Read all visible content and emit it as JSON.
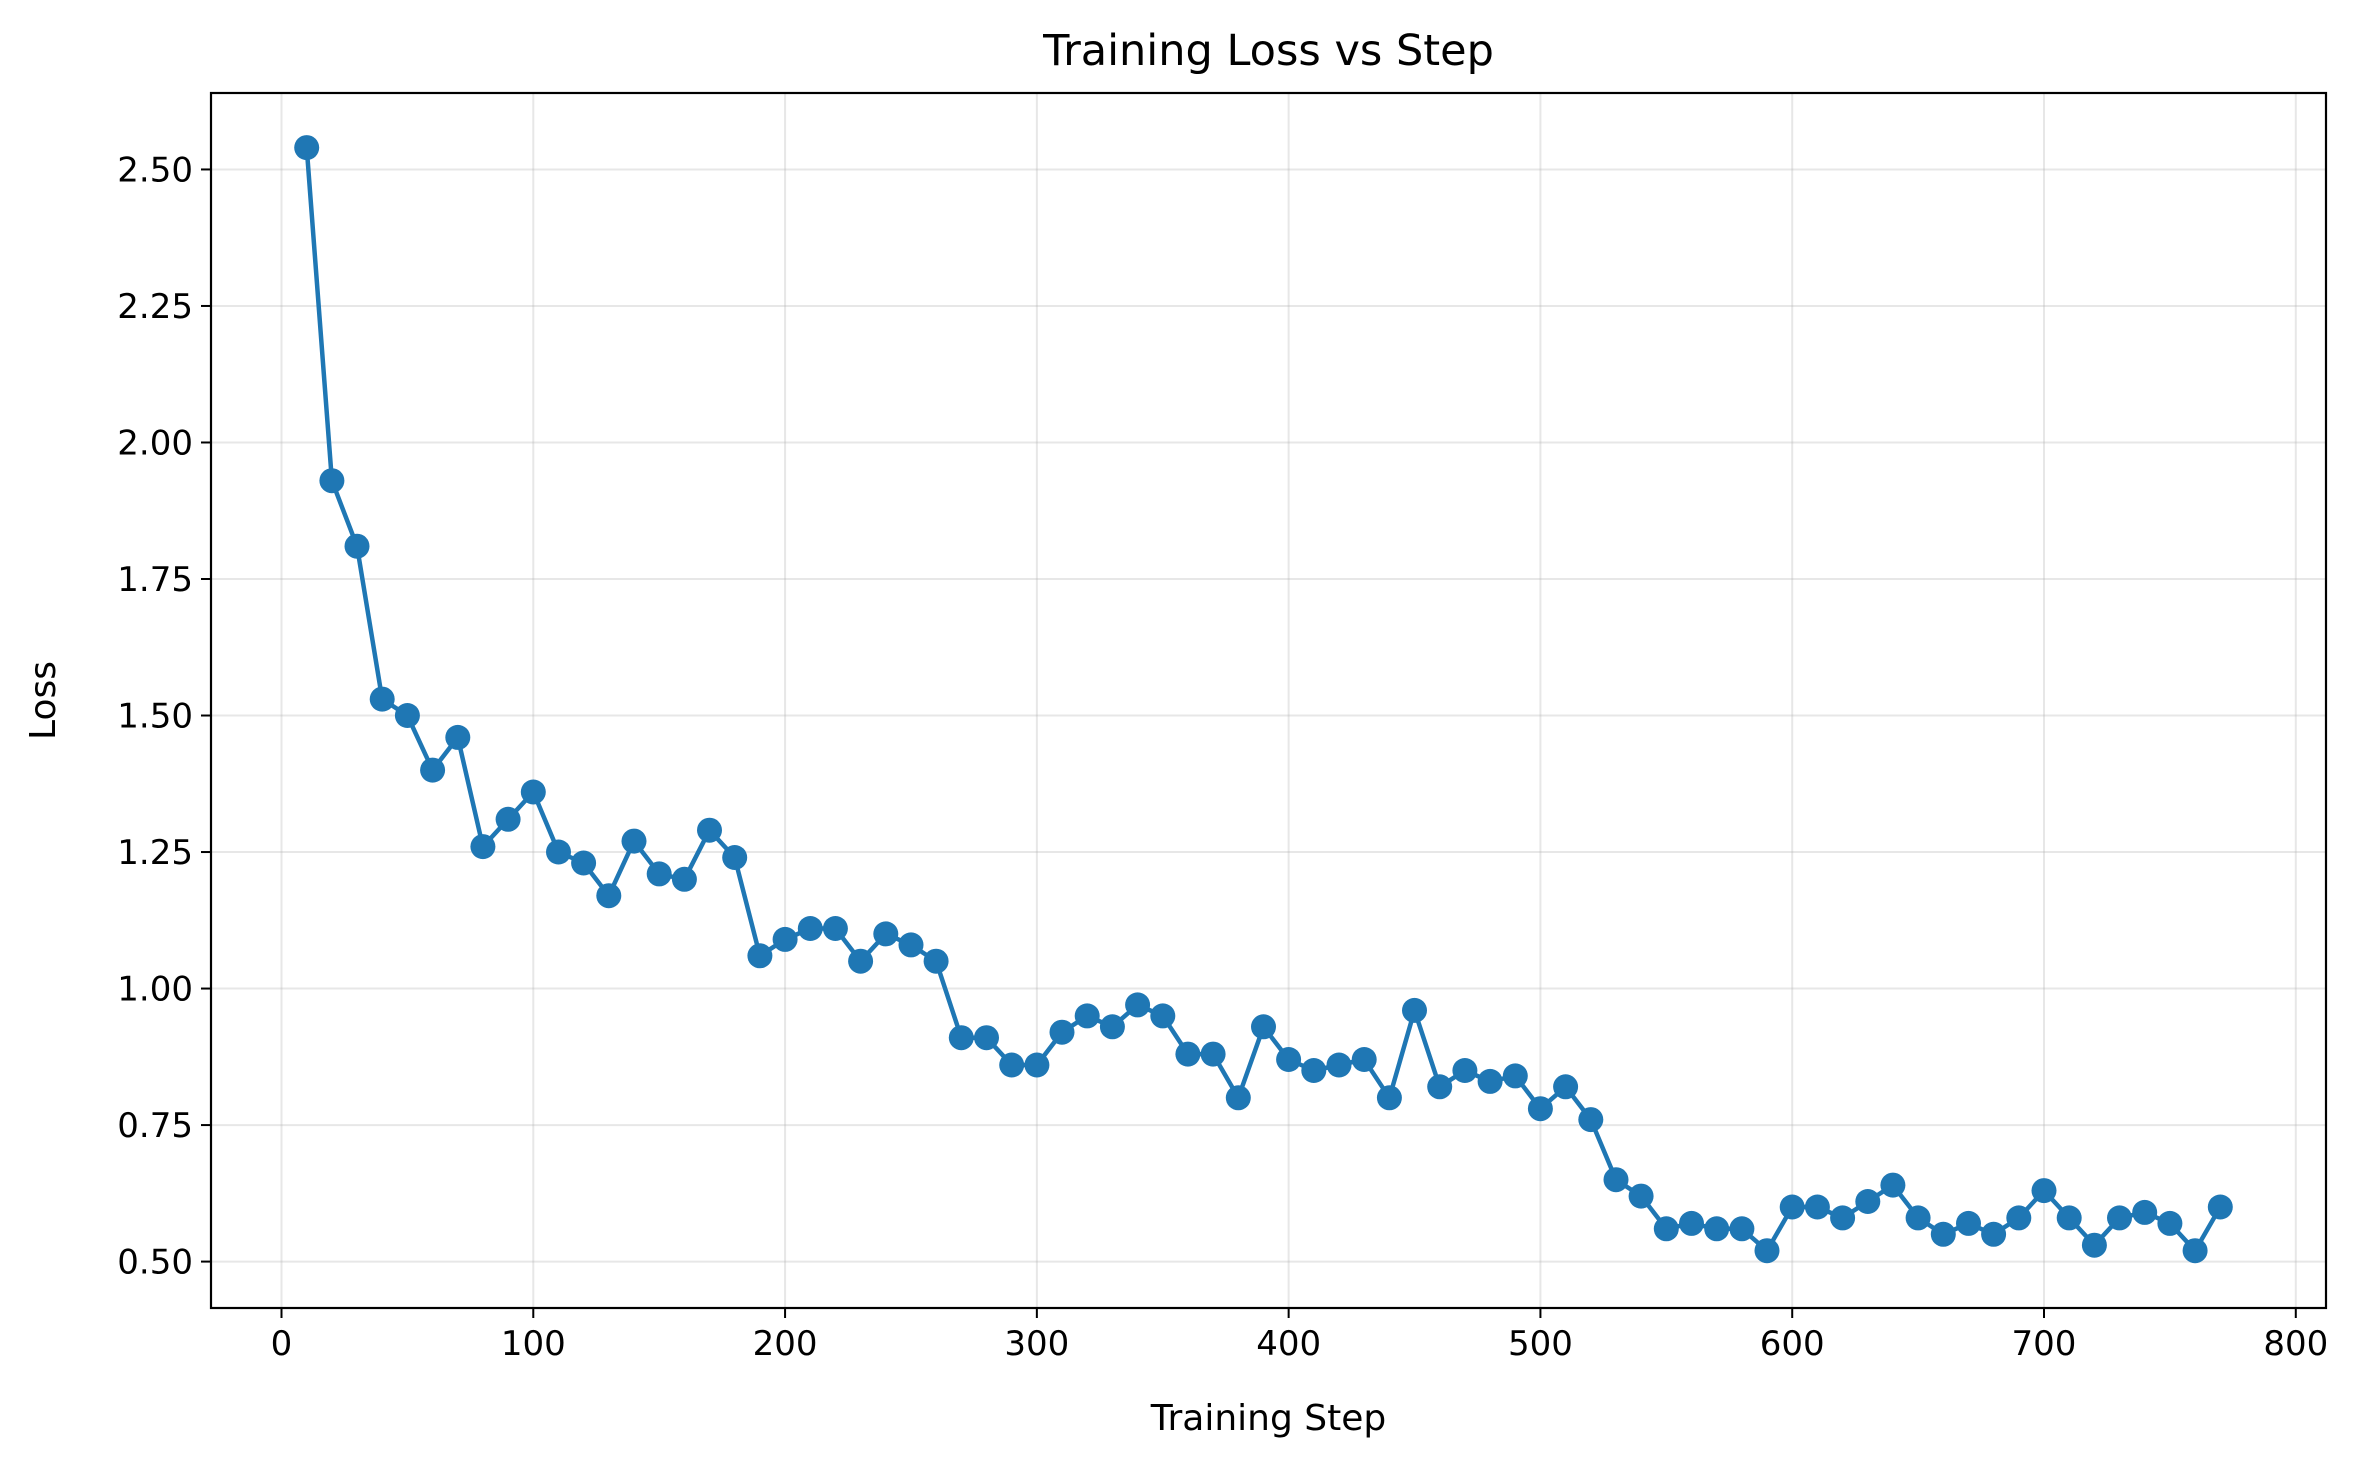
{
  "chart_data": {
    "type": "line",
    "title": "Training Loss vs Step",
    "xlabel": "Training Step",
    "ylabel": "Loss",
    "xlim": [
      -28,
      812
    ],
    "ylim": [
      0.415,
      2.64
    ],
    "xticks": [
      0,
      100,
      200,
      300,
      400,
      500,
      600,
      700,
      800
    ],
    "xtick_labels": [
      "0",
      "100",
      "200",
      "300",
      "400",
      "500",
      "600",
      "700",
      "800"
    ],
    "yticks": [
      0.5,
      0.75,
      1.0,
      1.25,
      1.5,
      1.75,
      2.0,
      2.25,
      2.5
    ],
    "ytick_labels": [
      "0.50",
      "0.75",
      "1.00",
      "1.25",
      "1.50",
      "1.75",
      "2.00",
      "2.25",
      "2.50"
    ],
    "grid": true,
    "legend": false,
    "series": [
      {
        "color": "#1f77b4",
        "marker": "circle",
        "x": [
          10,
          20,
          30,
          40,
          50,
          60,
          70,
          80,
          90,
          100,
          110,
          120,
          130,
          140,
          150,
          160,
          170,
          180,
          190,
          200,
          210,
          220,
          230,
          240,
          250,
          260,
          270,
          280,
          290,
          300,
          310,
          320,
          330,
          340,
          350,
          360,
          370,
          380,
          390,
          400,
          410,
          420,
          430,
          440,
          450,
          460,
          470,
          480,
          490,
          500,
          510,
          520,
          530,
          540,
          550,
          560,
          570,
          580,
          590,
          600,
          610,
          620,
          630,
          640,
          650,
          660,
          670,
          680,
          690,
          700,
          710,
          720,
          730,
          740,
          750,
          760,
          770
        ],
        "y": [
          2.54,
          1.93,
          1.81,
          1.53,
          1.5,
          1.4,
          1.46,
          1.26,
          1.31,
          1.36,
          1.25,
          1.23,
          1.17,
          1.27,
          1.21,
          1.2,
          1.29,
          1.24,
          1.06,
          1.09,
          1.11,
          1.11,
          1.05,
          1.1,
          1.08,
          1.05,
          0.91,
          0.91,
          0.86,
          0.86,
          0.92,
          0.95,
          0.93,
          0.97,
          0.95,
          0.88,
          0.88,
          0.8,
          0.93,
          0.87,
          0.85,
          0.86,
          0.87,
          0.8,
          0.96,
          0.82,
          0.85,
          0.83,
          0.84,
          0.78,
          0.82,
          0.76,
          0.65,
          0.62,
          0.56,
          0.57,
          0.56,
          0.56,
          0.52,
          0.6,
          0.6,
          0.58,
          0.61,
          0.64,
          0.58,
          0.55,
          0.57,
          0.55,
          0.58,
          0.63,
          0.58,
          0.53,
          0.58,
          0.59,
          0.57,
          0.52,
          0.6
        ]
      }
    ]
  }
}
